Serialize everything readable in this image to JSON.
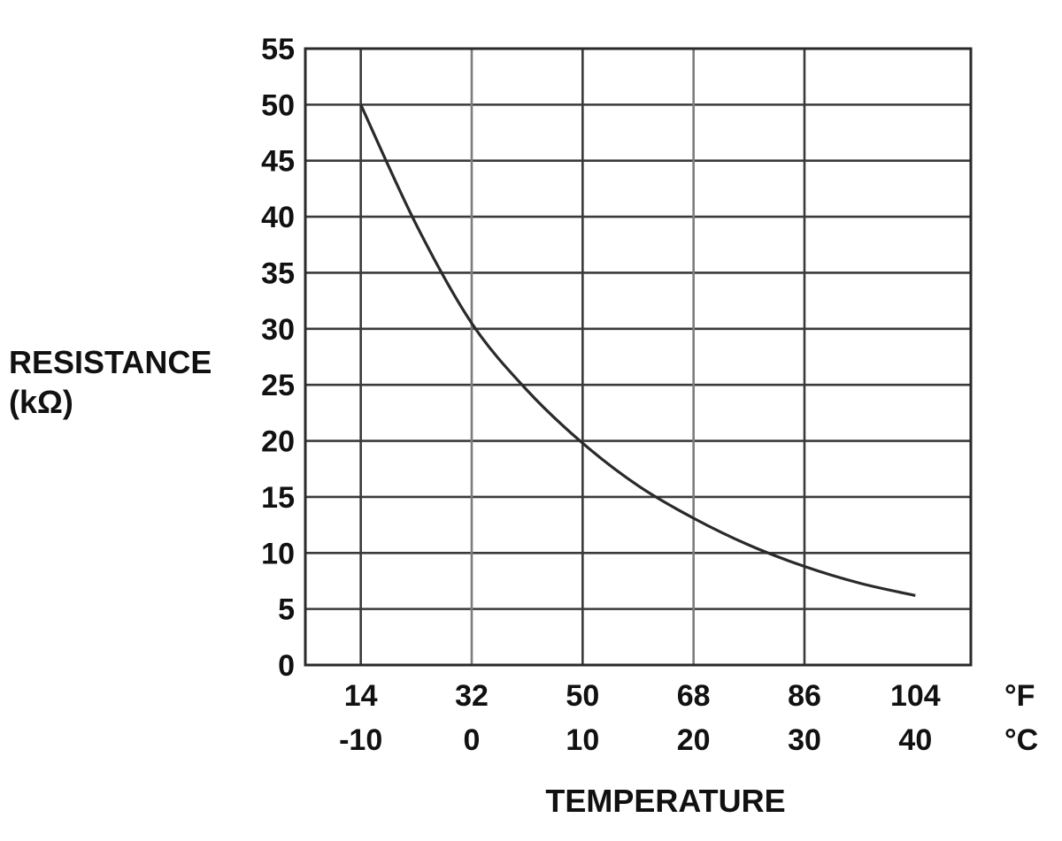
{
  "chart_data": {
    "type": "line",
    "xlabel": "TEMPERATURE",
    "ylabel": [
      "RESISTANCE",
      "(kΩ)"
    ],
    "ylim": [
      0,
      55
    ],
    "y_ticks": [
      0,
      5,
      10,
      15,
      20,
      25,
      30,
      35,
      40,
      45,
      50,
      55
    ],
    "xlim_celsius": [
      -15,
      45
    ],
    "x_ticks": [
      {
        "fahrenheit": "14",
        "celsius": "-10"
      },
      {
        "fahrenheit": "32",
        "celsius": "0"
      },
      {
        "fahrenheit": "50",
        "celsius": "10"
      },
      {
        "fahrenheit": "68",
        "celsius": "20"
      },
      {
        "fahrenheit": "86",
        "celsius": "30"
      },
      {
        "fahrenheit": "104",
        "celsius": "40"
      }
    ],
    "unit_labels": {
      "fahrenheit": "°F",
      "celsius": "°C"
    },
    "grid": true,
    "series": [
      {
        "x_celsius": [
          -10,
          -5,
          0,
          5,
          10,
          15,
          20,
          25,
          30,
          35,
          40
        ],
        "values": [
          50,
          39.3,
          30.5,
          24.5,
          19.8,
          16.0,
          13.1,
          10.7,
          8.8,
          7.3,
          6.2
        ]
      }
    ]
  }
}
